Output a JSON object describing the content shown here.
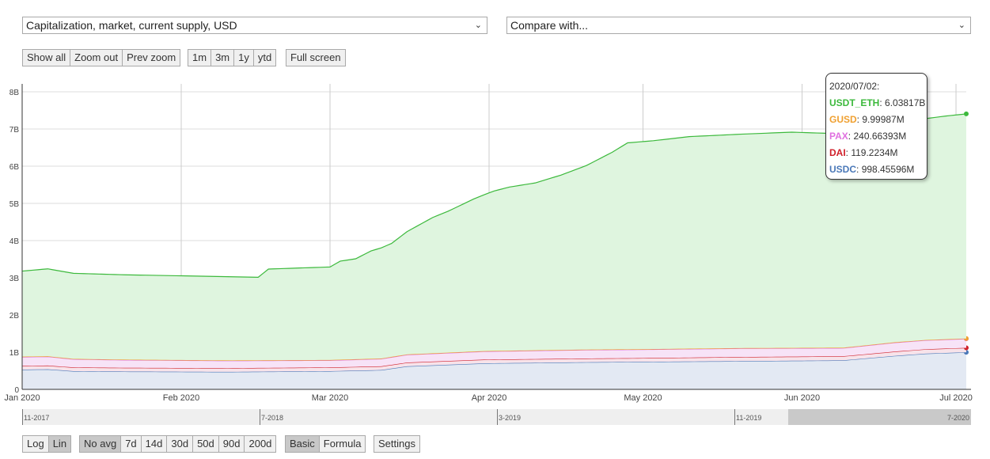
{
  "controls": {
    "metric_select": "Capitalization, market, current supply, USD",
    "compare_select": "Compare with...",
    "zoom_buttons": [
      "Show all",
      "Zoom out",
      "Prev zoom"
    ],
    "range_buttons": [
      "1m",
      "3m",
      "1y",
      "ytd"
    ],
    "fullscreen": "Full screen",
    "scale_buttons": [
      "Log",
      "Lin"
    ],
    "avg_buttons": [
      "No avg",
      "7d",
      "14d",
      "30d",
      "50d",
      "90d",
      "200d"
    ],
    "mode_buttons": [
      "Basic",
      "Formula"
    ],
    "settings": "Settings",
    "active": [
      "Lin",
      "No avg",
      "Basic"
    ]
  },
  "tooltip": {
    "date": "2020/07/02:",
    "rows": [
      {
        "name": "USDT_ETH",
        "value": "6.03817B",
        "color": "#3cb93c"
      },
      {
        "name": "GUSD",
        "value": "9.99987M",
        "color": "#f0a030"
      },
      {
        "name": "PAX",
        "value": "240.66393M",
        "color": "#e070e0"
      },
      {
        "name": "DAI",
        "value": "119.2234M",
        "color": "#d0202a"
      },
      {
        "name": "USDC",
        "value": "998.45596M",
        "color": "#4a78b8"
      }
    ]
  },
  "navigator": {
    "labels": [
      "11-2017",
      "7-2018",
      "3-2019",
      "11-2019",
      "7-2020"
    ]
  },
  "chart_data": {
    "type": "area",
    "stacked": true,
    "x_unit": "days since 2020-01-01",
    "xlim": [
      0,
      184
    ],
    "ylim": [
      0,
      8000000000
    ],
    "y_tick_labels": [
      "0",
      "1B",
      "2B",
      "3B",
      "4B",
      "5B",
      "6B",
      "7B",
      "8B"
    ],
    "y_ticks": [
      0,
      1000000000,
      2000000000,
      3000000000,
      4000000000,
      5000000000,
      6000000000,
      7000000000,
      8000000000
    ],
    "x_tick_labels": [
      "Jan 2020",
      "Feb 2020",
      "Mar 2020",
      "Apr 2020",
      "May 2020",
      "Jun 2020",
      "Jul 2020"
    ],
    "x_ticks": [
      0,
      31,
      60,
      91,
      121,
      152,
      182
    ],
    "grid": true,
    "series": [
      {
        "name": "USDC",
        "color": "#4a78b8",
        "fill": "#e3e9f3",
        "x": [
          0,
          5,
          10,
          20,
          40,
          60,
          70,
          75,
          90,
          110,
          120,
          140,
          160,
          170,
          176,
          184
        ],
        "y": [
          530000000,
          540000000,
          490000000,
          480000000,
          470000000,
          490000000,
          520000000,
          620000000,
          700000000,
          730000000,
          740000000,
          760000000,
          780000000,
          900000000,
          960000000,
          998000000
        ]
      },
      {
        "name": "DAI",
        "color": "#d0202a",
        "fill": "#f7e3ea",
        "x": [
          0,
          5,
          10,
          20,
          40,
          60,
          70,
          75,
          90,
          110,
          120,
          140,
          160,
          170,
          176,
          184
        ],
        "y": [
          100000000,
          100000000,
          100000000,
          100000000,
          100000000,
          100000000,
          100000000,
          100000000,
          100000000,
          100000000,
          100000000,
          110000000,
          110000000,
          115000000,
          118000000,
          119000000
        ]
      },
      {
        "name": "PAX",
        "color": "#e070e0",
        "fill": "#f7e3f7",
        "x": [
          0,
          5,
          10,
          20,
          40,
          60,
          70,
          75,
          90,
          110,
          120,
          140,
          160,
          170,
          176,
          184
        ],
        "y": [
          240000000,
          240000000,
          220000000,
          210000000,
          200000000,
          190000000,
          200000000,
          210000000,
          220000000,
          230000000,
          230000000,
          230000000,
          220000000,
          240000000,
          240000000,
          241000000
        ]
      },
      {
        "name": "GUSD",
        "color": "#f0a030",
        "fill": "#fbe8d0",
        "x": [
          0,
          184
        ],
        "y": [
          10000000,
          10000000
        ]
      },
      {
        "name": "USDT_ETH",
        "color": "#3cb93c",
        "fill": "#dff5df",
        "x": [
          0,
          5,
          10,
          20,
          40,
          46,
          48,
          55,
          60,
          62,
          65,
          68,
          72,
          75,
          80,
          83,
          88,
          92,
          95,
          100,
          105,
          110,
          115,
          118,
          123,
          130,
          140,
          150,
          160,
          165,
          170,
          176,
          180,
          184
        ],
        "y": [
          2300000000,
          2350000000,
          2300000000,
          2280000000,
          2250000000,
          2230000000,
          2450000000,
          2480000000,
          2500000000,
          2650000000,
          2700000000,
          2900000000,
          3050000000,
          3300000000,
          3650000000,
          3800000000,
          4100000000,
          4300000000,
          4400000000,
          4500000000,
          4700000000,
          4950000000,
          5300000000,
          5550000000,
          5600000000,
          5700000000,
          5750000000,
          5800000000,
          5750000000,
          5850000000,
          5900000000,
          5950000000,
          6000000000,
          6038000000
        ]
      }
    ]
  }
}
